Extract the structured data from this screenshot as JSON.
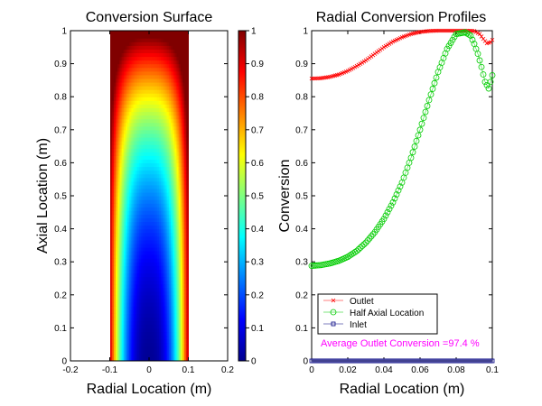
{
  "chart_data": [
    {
      "type": "heatmap",
      "title": "Conversion Surface",
      "xlabel": "Radial Location (m)",
      "ylabel": "Axial Location (m)",
      "xlim": [
        -0.2,
        0.2
      ],
      "ylim": [
        0,
        1
      ],
      "x_ticks": [
        "-0.2",
        "-0.1",
        "0",
        "0.1",
        "0.2"
      ],
      "y_ticks": [
        "0",
        "0.1",
        "0.2",
        "0.3",
        "0.4",
        "0.5",
        "0.6",
        "0.7",
        "0.8",
        "0.9",
        "1"
      ],
      "surface_x_range": [
        -0.1,
        0.1
      ],
      "surface_y_range": [
        0,
        1
      ],
      "colormap": "jet",
      "colorbar_ticks": [
        "0",
        "0.1",
        "0.2",
        "0.3",
        "0.4",
        "0.5",
        "0.6",
        "0.7",
        "0.8",
        "0.9",
        "1"
      ],
      "colorbar_range": [
        0,
        1
      ]
    },
    {
      "type": "line",
      "title": "Radial Conversion Profiles",
      "xlabel": "Radial Location (m)",
      "ylabel": "Conversion",
      "xlim": [
        0,
        0.1
      ],
      "ylim": [
        0,
        1
      ],
      "x_ticks": [
        "0",
        "0.02",
        "0.04",
        "0.06",
        "0.08",
        "0.1"
      ],
      "y_ticks": [
        "0",
        "0.1",
        "0.2",
        "0.3",
        "0.4",
        "0.5",
        "0.6",
        "0.7",
        "0.8",
        "0.9",
        "1"
      ],
      "series": [
        {
          "name": "Outlet",
          "marker": "x",
          "color": "#ff0000",
          "x": [
            0,
            0.005,
            0.01,
            0.015,
            0.02,
            0.025,
            0.03,
            0.035,
            0.04,
            0.045,
            0.05,
            0.055,
            0.06,
            0.065,
            0.07,
            0.075,
            0.08,
            0.085,
            0.09,
            0.093,
            0.095,
            0.097,
            0.099,
            0.1
          ],
          "y": [
            0.855,
            0.856,
            0.86,
            0.867,
            0.878,
            0.893,
            0.91,
            0.93,
            0.95,
            0.967,
            0.98,
            0.99,
            0.996,
            0.999,
            1.0,
            1.0,
            1.0,
            1.0,
            0.999,
            0.99,
            0.975,
            0.962,
            0.965,
            0.972
          ]
        },
        {
          "name": "Half Axial Location",
          "marker": "o",
          "color": "#00cc00",
          "x": [
            0,
            0.005,
            0.01,
            0.015,
            0.02,
            0.025,
            0.03,
            0.035,
            0.04,
            0.045,
            0.05,
            0.055,
            0.06,
            0.065,
            0.07,
            0.075,
            0.08,
            0.085,
            0.088,
            0.09,
            0.092,
            0.094,
            0.096,
            0.098,
            0.1
          ],
          "y": [
            0.288,
            0.29,
            0.295,
            0.303,
            0.315,
            0.333,
            0.358,
            0.39,
            0.43,
            0.48,
            0.54,
            0.615,
            0.7,
            0.79,
            0.875,
            0.945,
            0.99,
            0.995,
            0.985,
            0.96,
            0.93,
            0.89,
            0.845,
            0.825,
            0.865
          ]
        },
        {
          "name": "Inlet",
          "marker": "square",
          "color": "#000080",
          "x": [
            0,
            0.005,
            0.01,
            0.015,
            0.02,
            0.025,
            0.03,
            0.035,
            0.04,
            0.045,
            0.05,
            0.055,
            0.06,
            0.065,
            0.07,
            0.075,
            0.08,
            0.085,
            0.09,
            0.095,
            0.1
          ],
          "y": [
            0,
            0,
            0,
            0,
            0,
            0,
            0,
            0,
            0,
            0,
            0,
            0,
            0,
            0,
            0,
            0,
            0,
            0,
            0,
            0,
            0
          ]
        }
      ],
      "legend": [
        "Outlet",
        "Half Axial Location",
        "Inlet"
      ],
      "legend_position": "bottom-left",
      "annotation": "Average Outlet Conversion =97.4 %",
      "annotation_color": "#ff00ff"
    }
  ]
}
